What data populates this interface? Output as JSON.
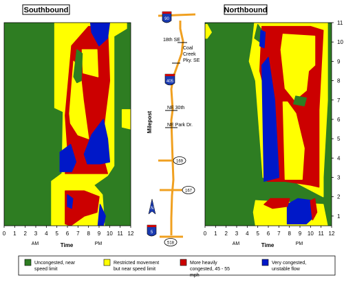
{
  "colors": {
    "uncongested": "#2E7D22",
    "restricted": "#FFFF00",
    "heavy": "#CC0000",
    "very": "#0018C8",
    "road": "#F0A020"
  },
  "chart_data": {
    "type": "heatmap",
    "x_axis": {
      "label": "Time",
      "min": 0,
      "max": 12,
      "ticks": [
        "0",
        "1",
        "2",
        "3",
        "4",
        "5",
        "6",
        "7",
        "8",
        "9",
        "10",
        "11",
        "12"
      ],
      "am_label": "AM",
      "pm_label": "PM"
    },
    "y_axis": {
      "label": "Milepost",
      "min": 0.5,
      "max": 11,
      "ticks": [
        "1",
        "2",
        "3",
        "4",
        "5",
        "6",
        "7",
        "8",
        "9",
        "10",
        "11"
      ]
    },
    "legend": [
      {
        "key": "uncongested",
        "text": "Uncongested, near speed limit"
      },
      {
        "key": "restricted",
        "text": "Restricted movement but near speed limit"
      },
      {
        "key": "heavy",
        "text": "More heavily congested, 45 - 55 mph"
      },
      {
        "key": "very",
        "text": "Very congested, unstable flow"
      }
    ],
    "panels": [
      {
        "title": "Southbound",
        "regions": [
          {
            "c": "restricted",
            "p": [
              [
                4.5,
                0.5
              ],
              [
                4.5,
                2.8
              ],
              [
                5.5,
                3.2
              ],
              [
                5.6,
                6.4
              ],
              [
                4.8,
                6.6
              ],
              [
                4.8,
                11
              ],
              [
                11.6,
                11
              ],
              [
                11.6,
                10.7
              ],
              [
                10.4,
                10.3
              ],
              [
                10.4,
                3.6
              ],
              [
                9.8,
                3.1
              ],
              [
                8.5,
                2.6
              ],
              [
                9.3,
                2.1
              ],
              [
                9.5,
                0.5
              ]
            ]
          },
          {
            "c": "restricted",
            "p": [
              [
                11.2,
                6.5
              ],
              [
                12,
                6.5
              ],
              [
                12,
                5.5
              ],
              [
                11.2,
                5.6
              ]
            ]
          },
          {
            "c": "heavy",
            "p": [
              [
                5.8,
                0.6
              ],
              [
                5.8,
                2.3
              ],
              [
                7.6,
                2.3
              ],
              [
                9.0,
                2.0
              ],
              [
                8.8,
                1.2
              ],
              [
                7.6,
                1.0
              ],
              [
                6.3,
                0.5
              ]
            ]
          },
          {
            "c": "heavy",
            "p": [
              [
                5.8,
                3.2
              ],
              [
                6.0,
                4.6
              ],
              [
                5.8,
                6.2
              ],
              [
                6.4,
                9.8
              ],
              [
                8.0,
                10.8
              ],
              [
                9.8,
                10.8
              ],
              [
                10.0,
                8.0
              ],
              [
                9.6,
                6.3
              ],
              [
                9.2,
                4.4
              ],
              [
                9.8,
                3.2
              ]
            ]
          },
          {
            "c": "restricted",
            "p": [
              [
                6.2,
                6.3
              ],
              [
                6.6,
                9.0
              ],
              [
                7.2,
                8.5
              ],
              [
                7.5,
                7.0
              ],
              [
                8.0,
                5.0
              ],
              [
                7.0,
                5.2
              ],
              [
                6.3,
                5.8
              ]
            ]
          },
          {
            "c": "restricted",
            "p": [
              [
                7.4,
                9.6
              ],
              [
                8.8,
                9.6
              ],
              [
                8.9,
                8.2
              ],
              [
                7.5,
                8.4
              ]
            ]
          },
          {
            "c": "uncongested",
            "p": [
              [
                6.6,
                8.2
              ],
              [
                6.9,
                9.6
              ],
              [
                7.4,
                9.4
              ],
              [
                7.3,
                8.0
              ],
              [
                6.9,
                7.9
              ]
            ]
          },
          {
            "c": "very",
            "p": [
              [
                5.3,
                3.3
              ],
              [
                5.3,
                4.3
              ],
              [
                6.3,
                4.7
              ],
              [
                6.8,
                3.8
              ],
              [
                6.4,
                3.3
              ]
            ]
          },
          {
            "c": "very",
            "p": [
              [
                7.9,
                3.7
              ],
              [
                7.6,
                4.2
              ],
              [
                8.3,
                5.2
              ],
              [
                9.4,
                6.0
              ],
              [
                9.8,
                5.0
              ],
              [
                10.0,
                3.8
              ],
              [
                9.1,
                3.7
              ]
            ]
          },
          {
            "c": "very",
            "p": [
              [
                8.3,
                10.5
              ],
              [
                8.2,
                11
              ],
              [
                10.0,
                11
              ],
              [
                9.8,
                10.2
              ],
              [
                9.0,
                9.8
              ]
            ]
          },
          {
            "c": "very",
            "p": [
              [
                8.9,
                0.5
              ],
              [
                9.1,
                1.6
              ],
              [
                9.6,
                1.0
              ],
              [
                9.4,
                0.5
              ]
            ]
          },
          {
            "c": "very",
            "p": [
              [
                6.0,
                1.5
              ],
              [
                6.0,
                2.1
              ],
              [
                6.5,
                1.9
              ],
              [
                6.4,
                1.4
              ]
            ]
          }
        ]
      },
      {
        "title": "Northbound",
        "regions": [
          {
            "c": "restricted",
            "p": [
              [
                0.0,
                10.9
              ],
              [
                0.2,
                10.9
              ],
              [
                0.6,
                10.5
              ],
              [
                0.2,
                10.2
              ],
              [
                0.0,
                10.2
              ]
            ]
          },
          {
            "c": "restricted",
            "p": [
              [
                4.7,
                11
              ],
              [
                4.5,
                10.0
              ],
              [
                4.2,
                9.0
              ],
              [
                4.8,
                8.0
              ],
              [
                5.5,
                3.0
              ],
              [
                8.4,
                2.8
              ],
              [
                11.2,
                2.0
              ],
              [
                11.2,
                3.0
              ],
              [
                11.6,
                7.0
              ],
              [
                11.6,
                11
              ]
            ]
          },
          {
            "c": "restricted",
            "p": [
              [
                4.8,
                0.5
              ],
              [
                4.6,
                1.2
              ],
              [
                4.8,
                1.8
              ],
              [
                11.2,
                1.6
              ],
              [
                11.6,
                0.5
              ]
            ]
          },
          {
            "c": "heavy",
            "p": [
              [
                5.4,
                10.8
              ],
              [
                5.2,
                8.5
              ],
              [
                5.9,
                7.0
              ],
              [
                5.9,
                2.8
              ],
              [
                7.6,
                2.8
              ],
              [
                10.0,
                2.6
              ],
              [
                10.8,
                2.5
              ],
              [
                10.8,
                6.5
              ],
              [
                11.2,
                10.6
              ],
              [
                10.0,
                10.8
              ]
            ]
          },
          {
            "c": "restricted",
            "p": [
              [
                7.2,
                9.6
              ],
              [
                7.4,
                10.4
              ],
              [
                10.4,
                10.3
              ],
              [
                10.4,
                8.8
              ],
              [
                9.8,
                8.5
              ],
              [
                9.6,
                7.5
              ],
              [
                8.5,
                7.0
              ],
              [
                7.6,
                7.6
              ]
            ]
          },
          {
            "c": "restricted",
            "p": [
              [
                7.4,
                6.9
              ],
              [
                7.6,
                2.9
              ],
              [
                9.2,
                2.9
              ],
              [
                9.4,
                4.5
              ],
              [
                8.6,
                6.3
              ],
              [
                7.8,
                6.9
              ]
            ]
          },
          {
            "c": "uncongested",
            "p": [
              [
                8.4,
                6.8
              ],
              [
                8.6,
                7.2
              ],
              [
                9.6,
                7.1
              ],
              [
                9.4,
                6.7
              ]
            ]
          },
          {
            "c": "uncongested",
            "p": [
              [
                4.7,
                10.2
              ],
              [
                5.0,
                10.9
              ],
              [
                5.4,
                10.6
              ],
              [
                5.2,
                10.0
              ]
            ]
          },
          {
            "c": "very",
            "p": [
              [
                5.6,
                2.8
              ],
              [
                5.4,
                8.8
              ],
              [
                6.0,
                9.2
              ],
              [
                6.6,
                7.0
              ],
              [
                7.0,
                3.0
              ]
            ]
          },
          {
            "c": "very",
            "p": [
              [
                5.2,
                9.8
              ],
              [
                5.3,
                10.6
              ],
              [
                5.7,
                10.5
              ],
              [
                5.6,
                9.7
              ]
            ]
          },
          {
            "c": "very",
            "p": [
              [
                7.8,
                1.6
              ],
              [
                7.8,
                0.6
              ],
              [
                9.6,
                0.6
              ],
              [
                10.4,
                1.0
              ],
              [
                10.2,
                1.8
              ],
              [
                8.8,
                1.9
              ]
            ]
          },
          {
            "c": "heavy",
            "p": [
              [
                5.6,
                1.6
              ],
              [
                6.2,
                1.9
              ],
              [
                8.0,
                1.9
              ],
              [
                7.8,
                1.5
              ],
              [
                6.4,
                1.4
              ]
            ]
          },
          {
            "c": "heavy",
            "p": [
              [
                10.0,
                1.8
              ],
              [
                10.4,
                1.9
              ],
              [
                10.6,
                1.2
              ],
              [
                10.2,
                0.8
              ]
            ]
          }
        ]
      }
    ]
  },
  "corridor": {
    "interstates": [
      {
        "label": "90",
        "mp": 11
      },
      {
        "label": "405",
        "mp": 8.1
      },
      {
        "label": "5",
        "mp": 0.6
      }
    ],
    "state_routes": [
      {
        "label": "169",
        "mp": 4
      },
      {
        "label": "167",
        "mp": 2.5
      },
      {
        "label": "518",
        "mp": 0
      }
    ],
    "interchanges": [
      {
        "label": "18th SE",
        "mp": 10.1
      },
      {
        "label": "Coal Creek Pky. SE",
        "mp": 9.2
      },
      {
        "label": "NE 30th",
        "mp": 6.5
      },
      {
        "label": "NE Park Dr.",
        "mp": 5.5
      }
    ],
    "north_arrow": "N"
  }
}
